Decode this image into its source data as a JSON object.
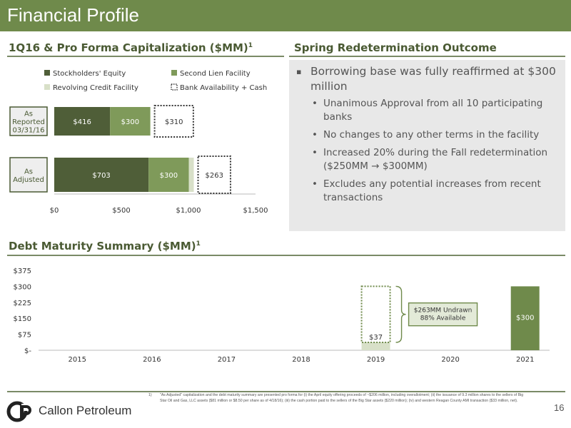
{
  "header": {
    "title": "Financial Profile"
  },
  "capitalization": {
    "heading": "1Q16 & Pro Forma Capitalization ($MM)",
    "heading_sup": "1",
    "legend": [
      {
        "label": "Stockholders' Equity",
        "color": "#4f5e38"
      },
      {
        "label": "Second Lien Facility",
        "color": "#7f9a5a"
      },
      {
        "label": "Revolving Credit Facility",
        "color": "#d8e0c8"
      },
      {
        "label": "Bank Availability + Cash",
        "color": "#ffffff"
      }
    ]
  },
  "chart_data": [
    {
      "type": "bar",
      "orientation": "horizontal-stacked",
      "categories": [
        "As Reported 03/31/16",
        "As Adjusted"
      ],
      "category_lines": [
        [
          "As",
          "Reported",
          "03/31/16"
        ],
        [
          "As",
          "Adjusted"
        ]
      ],
      "series": [
        {
          "name": "Stockholders' Equity",
          "values": [
            416,
            703
          ],
          "labels": [
            "$416",
            "$703"
          ],
          "color": "#4f5e38"
        },
        {
          "name": "Second Lien Facility",
          "values": [
            300,
            300
          ],
          "labels": [
            "$300",
            "$300"
          ],
          "color": "#7f9a5a"
        },
        {
          "name": "Revolving Credit Facility",
          "values": [
            0,
            37
          ],
          "labels": [
            "",
            ""
          ],
          "color": "#d8e0c8"
        },
        {
          "name": "Bank Availability + Cash",
          "values": [
            310,
            263
          ],
          "labels": [
            "$310",
            "$263"
          ],
          "color": "#ffffff"
        }
      ],
      "xlim": [
        0,
        1500
      ],
      "xticks": [
        0,
        500,
        1000,
        1500
      ],
      "xtick_labels": [
        "$0",
        "$500",
        "$1,000",
        "$1,500"
      ],
      "legend_position": "top"
    },
    {
      "type": "bar",
      "title": "Debt Maturity Summary ($MM)",
      "title_sup": "1",
      "categories": [
        "2015",
        "2016",
        "2017",
        "2018",
        "2019",
        "2020",
        "2021"
      ],
      "values": [
        0,
        0,
        0,
        0,
        37,
        0,
        300
      ],
      "value_labels": [
        "",
        "",
        "",
        "",
        "$37",
        "",
        "$300"
      ],
      "undrawn": {
        "category": "2019",
        "value": 263
      },
      "ylim": [
        0,
        375
      ],
      "yticks": [
        0,
        75,
        150,
        225,
        300,
        375
      ],
      "ytick_labels": [
        "$-",
        "$75",
        "$150",
        "$225",
        "$300",
        "$375"
      ],
      "callout_lines": [
        "$263MM Undrawn",
        "88% Available"
      ],
      "colors": {
        "revolver": "#d8e0c8",
        "notes": "#6f8a4b",
        "undrawn": "#6f8a4b"
      }
    }
  ],
  "redetermination": {
    "heading": "Spring Redetermination Outcome",
    "main_bullet": "Borrowing base was fully reaffirmed at $300 million",
    "sub_bullets": [
      "Unanimous Approval from all 10 participating banks",
      "No changes to any other terms in the facility",
      "Increased 20% during the Fall redetermination ($250MM → $300MM)",
      "Excludes any potential increases from recent transactions"
    ]
  },
  "footer": {
    "footnote_number": "1)",
    "footnote": "\"As Adjusted\" capitalization and the debt maturity summary are presented pro forma for (i) the April equity offering proceeds of ~$206 million, including overallotment; (ii) the issuance of 9.3 million shares to the sellers of Big Star Oil and Gas, LLC assets ($81 million or $8.50 per share as of 4/18/16); (iii) the cash portion paid to the sellers of the Big Star assets ($220 million); (iv) and western Reagan County AMI transaction ($33 million, net).",
    "company": "Callon Petroleum",
    "page_number": "16"
  }
}
